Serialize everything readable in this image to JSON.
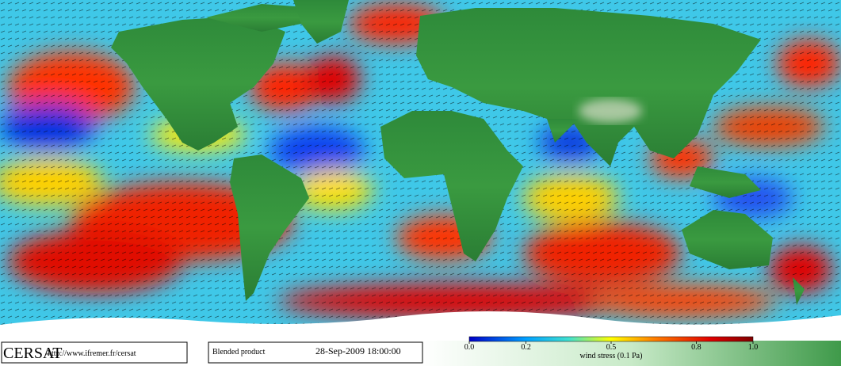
{
  "footer": {
    "logo": "CERSAT",
    "url": "http://www.ifremer.fr/cersat",
    "product": "Blended product",
    "date": "28-Sep-2009 18:00:00"
  },
  "colorbar": {
    "label": "wind stress (0.1 Pa)",
    "range": [
      0,
      1
    ],
    "ticks": [
      {
        "value": 0,
        "label": "0.0"
      },
      {
        "value": 0.2,
        "label": "0.2"
      },
      {
        "value": 0.5,
        "label": "0.5"
      },
      {
        "value": 0.8,
        "label": "0.8"
      },
      {
        "value": 1,
        "label": "1.0"
      }
    ]
  }
}
